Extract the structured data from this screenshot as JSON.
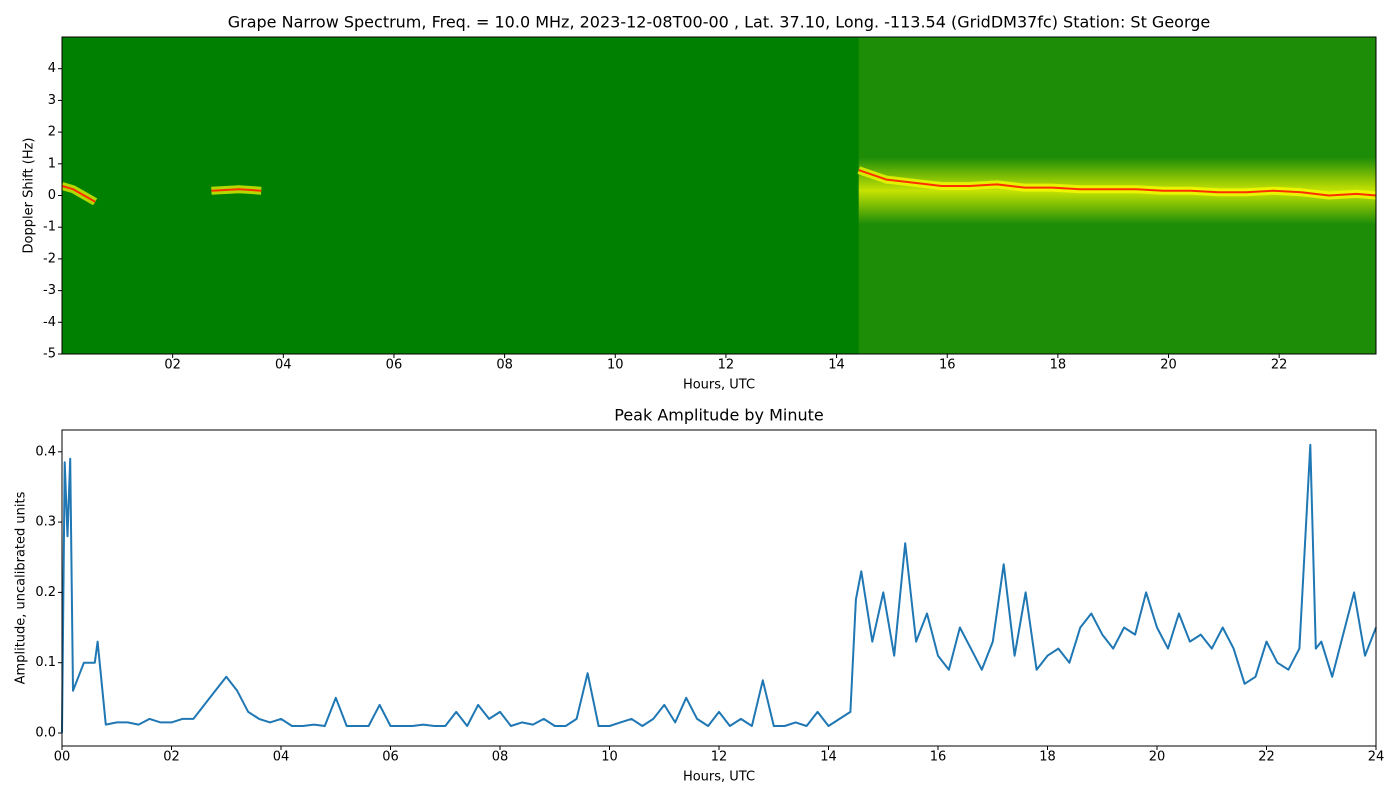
{
  "chart_data": [
    {
      "type": "spectrogram",
      "title": "Grape Narrow Spectrum, Freq. = 10.0 MHz, 2023-12-08T00-00 , Lat.  37.10, Long. -113.54 (GridDM37fc) Station: St George",
      "xlabel": "Hours, UTC",
      "ylabel": "Doppler Shift (Hz)",
      "xlim": [
        0,
        23.75
      ],
      "ylim": [
        -5,
        5
      ],
      "xticks": [
        {
          "value": 2,
          "label": "02"
        },
        {
          "value": 4,
          "label": "04"
        },
        {
          "value": 6,
          "label": "06"
        },
        {
          "value": 8,
          "label": "08"
        },
        {
          "value": 10,
          "label": "10"
        },
        {
          "value": 12,
          "label": "12"
        },
        {
          "value": 14,
          "label": "14"
        },
        {
          "value": 16,
          "label": "16"
        },
        {
          "value": 18,
          "label": "18"
        },
        {
          "value": 20,
          "label": "20"
        },
        {
          "value": 22,
          "label": "22"
        }
      ],
      "yticks": [
        -5,
        -4,
        -3,
        -2,
        -1,
        0,
        1,
        2,
        3,
        4
      ],
      "color": "#ff3000",
      "x": [
        0,
        0.2,
        0.4,
        0.6,
        1,
        2.7,
        3.2,
        3.6,
        5,
        14.4,
        14.9,
        15.4,
        15.9,
        16.4,
        16.9,
        17.4,
        17.9,
        18.4,
        18.9,
        19.4,
        19.9,
        20.4,
        20.9,
        21.4,
        21.9,
        22.4,
        22.9,
        23.4,
        23.75
      ],
      "values": [
        0.3,
        0.2,
        0,
        -0.2,
        null,
        0.15,
        0.2,
        0.15,
        null,
        0.8,
        0.5,
        0.4,
        0.3,
        0.3,
        0.35,
        0.25,
        0.25,
        0.2,
        0.2,
        0.2,
        0.15,
        0.15,
        0.1,
        0.1,
        0.15,
        0.1,
        0,
        0.05,
        0
      ]
    },
    {
      "type": "line",
      "title": "Peak Amplitude by Minute",
      "xlabel": "Hours, UTC",
      "ylabel": "Amplitude, uncalibrated units",
      "xlim": [
        0,
        24
      ],
      "ylim": [
        -0.0185,
        0.431
      ],
      "xticks": [
        {
          "value": 0,
          "label": "00"
        },
        {
          "value": 2,
          "label": "02"
        },
        {
          "value": 4,
          "label": "04"
        },
        {
          "value": 6,
          "label": "06"
        },
        {
          "value": 8,
          "label": "08"
        },
        {
          "value": 10,
          "label": "10"
        },
        {
          "value": 12,
          "label": "12"
        },
        {
          "value": 14,
          "label": "14"
        },
        {
          "value": 16,
          "label": "16"
        },
        {
          "value": 18,
          "label": "18"
        },
        {
          "value": 20,
          "label": "20"
        },
        {
          "value": 22,
          "label": "22"
        },
        {
          "value": 24,
          "label": "24"
        }
      ],
      "yticks": [
        {
          "value": 0,
          "label": "0.0"
        },
        {
          "value": 0.1,
          "label": "0.1"
        },
        {
          "value": 0.2,
          "label": "0.2"
        },
        {
          "value": 0.3,
          "label": "0.3"
        },
        {
          "value": 0.4,
          "label": "0.4"
        }
      ],
      "color": "#1f77b4",
      "x": [
        0,
        0.05,
        0.1,
        0.15,
        0.2,
        0.4,
        0.6,
        0.65,
        0.8,
        1.0,
        1.2,
        1.4,
        1.6,
        1.8,
        2.0,
        2.2,
        2.4,
        2.6,
        2.8,
        3.0,
        3.2,
        3.4,
        3.6,
        3.8,
        4.0,
        4.2,
        4.4,
        4.6,
        4.8,
        5.0,
        5.2,
        5.4,
        5.6,
        5.8,
        6.0,
        6.2,
        6.4,
        6.6,
        6.8,
        7.0,
        7.2,
        7.4,
        7.6,
        7.8,
        8.0,
        8.2,
        8.4,
        8.6,
        8.8,
        9.0,
        9.2,
        9.4,
        9.6,
        9.8,
        10.0,
        10.2,
        10.4,
        10.6,
        10.8,
        11.0,
        11.2,
        11.4,
        11.6,
        11.8,
        12.0,
        12.2,
        12.4,
        12.6,
        12.8,
        13.0,
        13.2,
        13.4,
        13.6,
        13.8,
        14.0,
        14.2,
        14.4,
        14.5,
        14.6,
        14.8,
        15.0,
        15.2,
        15.4,
        15.6,
        15.8,
        16.0,
        16.2,
        16.4,
        16.6,
        16.8,
        17.0,
        17.2,
        17.4,
        17.6,
        17.8,
        18.0,
        18.2,
        18.4,
        18.6,
        18.8,
        19.0,
        19.2,
        19.4,
        19.6,
        19.8,
        20.0,
        20.2,
        20.4,
        20.6,
        20.8,
        21.0,
        21.2,
        21.4,
        21.6,
        21.8,
        22.0,
        22.2,
        22.4,
        22.6,
        22.8,
        22.9,
        23.0,
        23.2,
        23.4,
        23.6,
        23.8,
        24.0
      ],
      "values": [
        0.0,
        0.385,
        0.28,
        0.39,
        0.06,
        0.1,
        0.1,
        0.13,
        0.012,
        0.015,
        0.015,
        0.012,
        0.02,
        0.015,
        0.015,
        0.02,
        0.02,
        0.04,
        0.06,
        0.08,
        0.06,
        0.03,
        0.02,
        0.015,
        0.02,
        0.01,
        0.01,
        0.012,
        0.01,
        0.05,
        0.01,
        0.01,
        0.01,
        0.04,
        0.01,
        0.01,
        0.01,
        0.012,
        0.01,
        0.01,
        0.03,
        0.01,
        0.04,
        0.02,
        0.03,
        0.01,
        0.015,
        0.012,
        0.02,
        0.01,
        0.01,
        0.02,
        0.085,
        0.01,
        0.01,
        0.015,
        0.02,
        0.01,
        0.02,
        0.04,
        0.015,
        0.05,
        0.02,
        0.01,
        0.03,
        0.01,
        0.02,
        0.01,
        0.075,
        0.01,
        0.01,
        0.015,
        0.01,
        0.03,
        0.01,
        0.02,
        0.03,
        0.19,
        0.23,
        0.13,
        0.2,
        0.11,
        0.27,
        0.13,
        0.17,
        0.11,
        0.09,
        0.15,
        0.12,
        0.09,
        0.13,
        0.24,
        0.11,
        0.2,
        0.09,
        0.11,
        0.12,
        0.1,
        0.15,
        0.17,
        0.14,
        0.12,
        0.15,
        0.14,
        0.2,
        0.15,
        0.12,
        0.17,
        0.13,
        0.14,
        0.12,
        0.15,
        0.12,
        0.07,
        0.08,
        0.13,
        0.1,
        0.09,
        0.12,
        0.41,
        0.12,
        0.13,
        0.08,
        0.14,
        0.2,
        0.11,
        0.15
      ]
    }
  ]
}
